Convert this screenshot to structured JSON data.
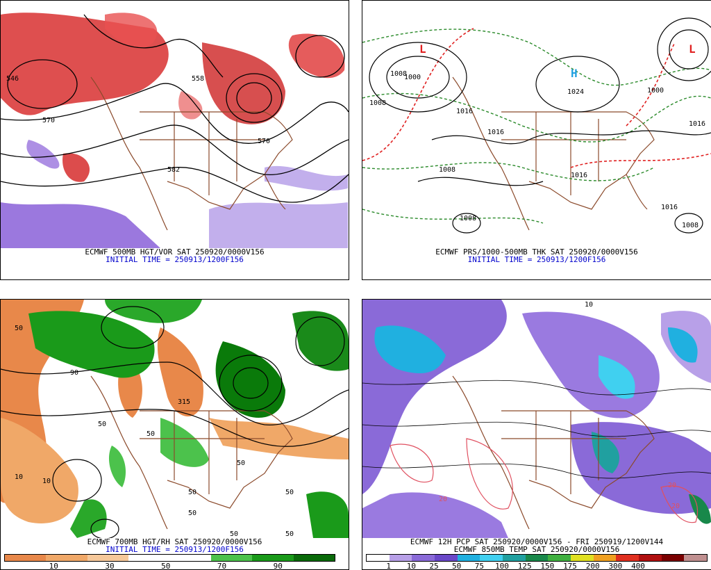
{
  "panels": [
    {
      "id": "p1",
      "caption_line1": "ECMWF 500MB HGT/VOR SAT 250920/0000V156",
      "caption_line2": "INITIAL TIME = 250913/1200F156",
      "contour_labels": [
        "546",
        "558",
        "570",
        "570",
        "582"
      ]
    },
    {
      "id": "p2",
      "caption_line1": "ECMWF PRS/1000-500MB THK SAT 250920/0000V156",
      "caption_line2": "INITIAL TIME = 250913/1200F156",
      "contour_labels": [
        "1000",
        "1008",
        "1016",
        "1016",
        "1024",
        "1008",
        "1016",
        "1008",
        "1008",
        "1016",
        "1008",
        "1000",
        "1016"
      ]
    },
    {
      "id": "p3",
      "caption_line1": "ECMWF 700MB HGT/RH SAT 250920/0000V156",
      "caption_line2": "INITIAL TIME = 250913/1200F156",
      "contour_labels": [
        "50",
        "10",
        "10",
        "90",
        "50",
        "50",
        "50",
        "50",
        "50",
        "50",
        "50",
        "50",
        "315"
      ],
      "colorbar": {
        "colors": [
          "#e8884a",
          "#f0a868",
          "#f6c89a",
          "#ffffff",
          "#ffffff",
          "#4cc24c",
          "#1a9a1a",
          "#0a6a0a"
        ],
        "ticks": [
          "10",
          "30",
          "50",
          "70",
          "90"
        ]
      }
    },
    {
      "id": "p4",
      "caption_line1": "ECMWF 12H PCP SAT 250920/0000V156 - FRI 250919/1200V144",
      "caption_line2": "ECMWF 850MB TEMP SAT 250920/0000V156",
      "contour_labels": [
        "10",
        "20",
        "20",
        "20"
      ],
      "colorbar": {
        "colors": [
          "#ffffff",
          "#b8a0e8",
          "#8a6ad8",
          "#6a48c8",
          "#20b0e0",
          "#40d0f0",
          "#20a0a0",
          "#18884a",
          "#40b040",
          "#e0e020",
          "#f0a020",
          "#e03020",
          "#b01010",
          "#7a0000",
          "#c09090"
        ],
        "ticks": [
          "1",
          "10",
          "25",
          "50",
          "75",
          "100",
          "125",
          "150",
          "175",
          "200",
          "300",
          "400"
        ]
      }
    }
  ]
}
